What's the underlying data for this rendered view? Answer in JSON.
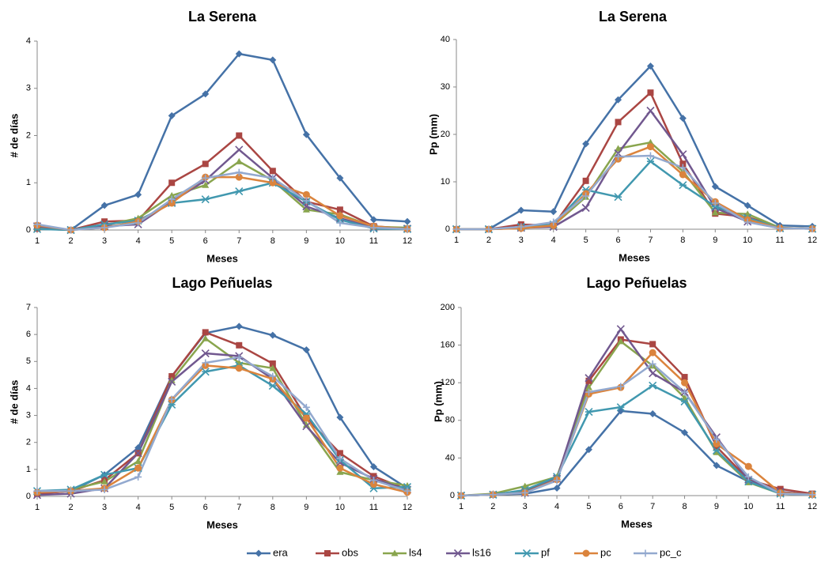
{
  "chart_data": [
    {
      "type": "line",
      "title": "La Serena",
      "x_label": "Meses",
      "y_label": "# de días",
      "x": [
        1,
        2,
        3,
        4,
        5,
        6,
        7,
        8,
        9,
        10,
        11,
        12
      ],
      "xlim": [
        1,
        12
      ],
      "xticks": [
        1,
        2,
        3,
        4,
        5,
        6,
        7,
        8,
        9,
        10,
        11,
        12
      ],
      "ylim": [
        0,
        4
      ],
      "yticks": [
        0,
        1,
        2,
        3,
        4
      ],
      "series": [
        {
          "name": "era",
          "color": "#4572a7",
          "marker": "diamond",
          "values": [
            0.05,
            0,
            0.52,
            0.75,
            2.42,
            2.88,
            3.73,
            3.6,
            2.02,
            1.1,
            0.22,
            0.18
          ]
        },
        {
          "name": "obs",
          "color": "#aa4643",
          "marker": "square",
          "values": [
            0.03,
            0,
            0.18,
            0.2,
            1.0,
            1.4,
            2.0,
            1.25,
            0.6,
            0.43,
            0.08,
            0.03
          ]
        },
        {
          "name": "ls4",
          "color": "#89a54e",
          "marker": "triangle",
          "values": [
            0.05,
            0,
            0.1,
            0.25,
            0.73,
            0.95,
            1.45,
            1.05,
            0.43,
            0.33,
            0.07,
            0.05
          ]
        },
        {
          "name": "ls16",
          "color": "#71588f",
          "marker": "x",
          "values": [
            0.08,
            0,
            0.08,
            0.12,
            0.6,
            1.05,
            1.7,
            1.1,
            0.5,
            0.25,
            0.05,
            0.03
          ]
        },
        {
          "name": "pf",
          "color": "#4198af",
          "marker": "star",
          "values": [
            0.02,
            0,
            0.12,
            0.2,
            0.57,
            0.65,
            0.82,
            1.0,
            0.6,
            0.22,
            0.03,
            0.02
          ]
        },
        {
          "name": "pc",
          "color": "#db843d",
          "marker": "circle",
          "values": [
            0.1,
            0,
            0.05,
            0.18,
            0.57,
            1.12,
            1.12,
            1.0,
            0.75,
            0.3,
            0.08,
            0.02
          ]
        },
        {
          "name": "pc_c",
          "color": "#93a9cf",
          "marker": "plus",
          "values": [
            0.12,
            0,
            0.05,
            0.15,
            0.65,
            1.1,
            1.22,
            1.1,
            0.62,
            0.15,
            0.05,
            0.02
          ]
        }
      ]
    },
    {
      "type": "line",
      "title": "La Serena",
      "x_label": "Meses",
      "y_label": "Pp (mm)",
      "x": [
        1,
        2,
        3,
        4,
        5,
        6,
        7,
        8,
        9,
        10,
        11,
        12
      ],
      "xlim": [
        1,
        12
      ],
      "xticks": [
        1,
        2,
        3,
        4,
        5,
        6,
        7,
        8,
        9,
        10,
        11,
        12
      ],
      "ylim": [
        0,
        40
      ],
      "yticks": [
        0,
        10,
        20,
        30,
        40
      ],
      "series": [
        {
          "name": "era",
          "color": "#4572a7",
          "marker": "diamond",
          "values": [
            0,
            0,
            4,
            3.7,
            18,
            27.3,
            34.4,
            23.4,
            9,
            5,
            0.8,
            0.6
          ]
        },
        {
          "name": "obs",
          "color": "#aa4643",
          "marker": "square",
          "values": [
            0,
            0,
            1,
            0.8,
            10.2,
            22.6,
            28.8,
            13.8,
            3.3,
            2.6,
            0.3,
            0.1
          ]
        },
        {
          "name": "ls4",
          "color": "#89a54e",
          "marker": "triangle",
          "values": [
            0,
            0,
            0.3,
            0.8,
            6.8,
            17,
            18.3,
            12.2,
            3.5,
            3.2,
            0.3,
            0.1
          ]
        },
        {
          "name": "ls16",
          "color": "#71588f",
          "marker": "x",
          "values": [
            0,
            0,
            0.3,
            0.5,
            4.5,
            16,
            25,
            15.8,
            4.5,
            1.6,
            0.2,
            0.1
          ]
        },
        {
          "name": "pf",
          "color": "#4198af",
          "marker": "star",
          "values": [
            0,
            0,
            0.5,
            1,
            8.3,
            6.8,
            14.3,
            9.3,
            4.8,
            2.4,
            0.2,
            0.1
          ]
        },
        {
          "name": "pc",
          "color": "#db843d",
          "marker": "circle",
          "values": [
            0,
            0,
            0.2,
            0.8,
            7.5,
            14.8,
            17.4,
            11.5,
            5.8,
            2,
            0.2,
            0.1
          ]
        },
        {
          "name": "pc_c",
          "color": "#93a9cf",
          "marker": "plus",
          "values": [
            0,
            0,
            0.5,
            1.5,
            7,
            15.3,
            15.5,
            13,
            5.5,
            1.5,
            0.2,
            0.1
          ]
        }
      ]
    },
    {
      "type": "line",
      "title": "Lago Peñuelas",
      "x_label": "Meses",
      "y_label": "# de días",
      "x": [
        1,
        2,
        3,
        4,
        5,
        6,
        7,
        8,
        9,
        10,
        11,
        12
      ],
      "xlim": [
        1,
        12
      ],
      "xticks": [
        1,
        2,
        3,
        4,
        5,
        6,
        7,
        8,
        9,
        10,
        11,
        12
      ],
      "ylim": [
        0,
        7
      ],
      "yticks": [
        0,
        1,
        2,
        3,
        4,
        5,
        6,
        7
      ],
      "series": [
        {
          "name": "era",
          "color": "#4572a7",
          "marker": "diamond",
          "values": [
            0.1,
            0.2,
            0.8,
            1.8,
            4.45,
            6.05,
            6.3,
            5.97,
            5.43,
            2.93,
            1.1,
            0.3
          ]
        },
        {
          "name": "obs",
          "color": "#aa4643",
          "marker": "square",
          "values": [
            0.1,
            0.2,
            0.6,
            1.6,
            4.45,
            6.08,
            5.6,
            4.92,
            2.9,
            1.6,
            0.75,
            0.25
          ]
        },
        {
          "name": "ls4",
          "color": "#89a54e",
          "marker": "triangle",
          "values": [
            0.15,
            0.25,
            0.55,
            1.3,
            4.3,
            5.85,
            4.95,
            4.75,
            2.65,
            0.9,
            0.6,
            0.4
          ]
        },
        {
          "name": "ls16",
          "color": "#71588f",
          "marker": "x",
          "values": [
            0.05,
            0.1,
            0.3,
            1.6,
            4.25,
            5.3,
            5.2,
            4.35,
            2.6,
            1.25,
            0.65,
            0.25
          ]
        },
        {
          "name": "pf",
          "color": "#4198af",
          "marker": "star",
          "values": [
            0.2,
            0.25,
            0.8,
            1.05,
            3.4,
            4.62,
            4.85,
            4.1,
            3.05,
            1.35,
            0.3,
            0.35
          ]
        },
        {
          "name": "pc",
          "color": "#db843d",
          "marker": "circle",
          "values": [
            0.15,
            0.2,
            0.3,
            1.05,
            3.58,
            4.85,
            4.75,
            4.35,
            2.9,
            1.05,
            0.45,
            0.15
          ]
        },
        {
          "name": "pc_c",
          "color": "#93a9cf",
          "marker": "plus",
          "values": [
            0.2,
            0.2,
            0.25,
            0.72,
            3.6,
            4.95,
            5.15,
            4.45,
            3.3,
            1.4,
            0.6,
            0.2
          ]
        }
      ]
    },
    {
      "type": "line",
      "title": "Lago Peñuelas",
      "x_label": "Meses",
      "y_label": "Pp (mm)",
      "x": [
        1,
        2,
        3,
        4,
        5,
        6,
        7,
        8,
        9,
        10,
        11,
        12
      ],
      "xlim": [
        1,
        12
      ],
      "xticks": [
        1,
        2,
        3,
        4,
        5,
        6,
        7,
        8,
        9,
        10,
        11,
        12
      ],
      "ylim": [
        0,
        200
      ],
      "yticks": [
        0,
        40,
        80,
        120,
        160,
        200
      ],
      "series": [
        {
          "name": "era",
          "color": "#4572a7",
          "marker": "diamond",
          "values": [
            0,
            1,
            2,
            8,
            49,
            90,
            87,
            67,
            32,
            15,
            3,
            1
          ]
        },
        {
          "name": "obs",
          "color": "#aa4643",
          "marker": "square",
          "values": [
            0,
            1,
            5,
            18,
            122,
            166,
            161,
            126,
            52,
            17,
            7,
            2
          ]
        },
        {
          "name": "ls4",
          "color": "#89a54e",
          "marker": "triangle",
          "values": [
            0,
            2,
            10,
            20,
            115,
            164,
            138,
            104,
            46,
            14,
            2,
            1
          ]
        },
        {
          "name": "ls16",
          "color": "#71588f",
          "marker": "x",
          "values": [
            0,
            1,
            3,
            18,
            125,
            177,
            130,
            110,
            62,
            17,
            4,
            1
          ]
        },
        {
          "name": "pf",
          "color": "#4198af",
          "marker": "star",
          "values": [
            0,
            1,
            6,
            20,
            89,
            94,
            117,
            100,
            48,
            15,
            2,
            1
          ]
        },
        {
          "name": "pc",
          "color": "#db843d",
          "marker": "circle",
          "values": [
            0,
            1,
            3,
            17,
            108,
            115,
            152,
            120,
            55,
            31,
            3,
            1
          ]
        },
        {
          "name": "pc_c",
          "color": "#93a9cf",
          "marker": "plus",
          "values": [
            0,
            1,
            3,
            16,
            110,
            116,
            140,
            110,
            60,
            20,
            2,
            1
          ]
        }
      ]
    }
  ]
}
